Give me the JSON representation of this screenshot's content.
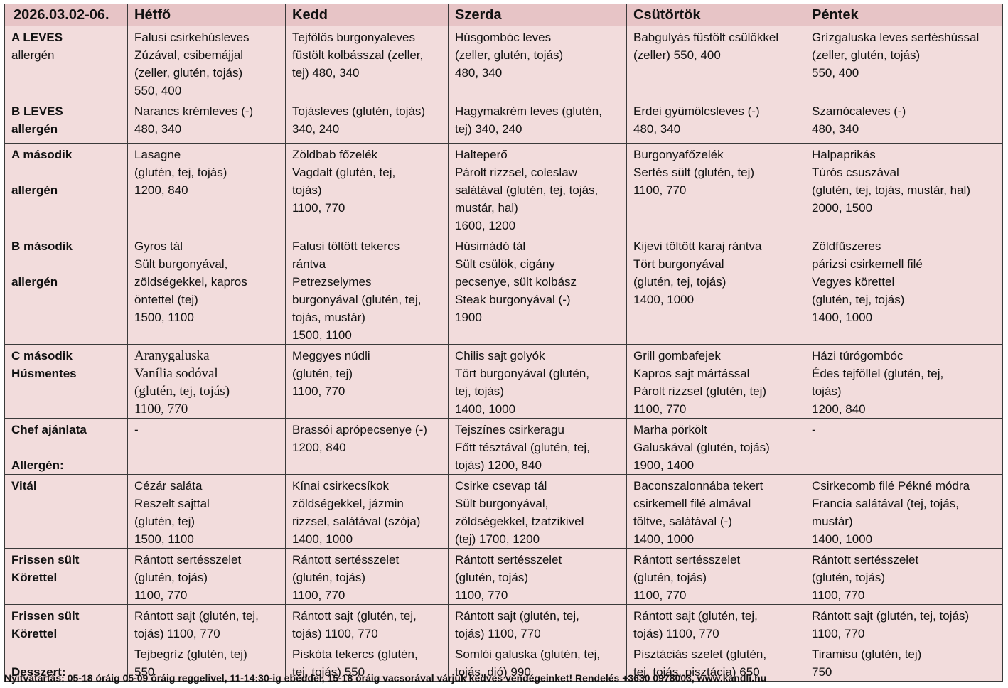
{
  "header": {
    "date": "2026.03.02-06.",
    "days": [
      "Hétfő",
      "Kedd",
      "Szerda",
      "Csütörtök",
      "Péntek"
    ]
  },
  "rows": [
    {
      "label": [
        "A LEVES",
        "allergén"
      ],
      "label_bold": [
        true,
        false
      ],
      "cells": [
        [
          "Falusi csirkehúsleves",
          "Zúzával, csibemájjal",
          "(zeller, glutén, tojás)",
          "550, 400"
        ],
        [
          "Tejfölös burgonyaleves",
          "füstölt kolbásszal (zeller,",
          "tej) 480, 340"
        ],
        [
          "Húsgombóc leves",
          "(zeller, glutén, tojás)",
          "480, 340"
        ],
        [
          "Babgulyás füstölt csülökkel",
          "(zeller) 550, 400"
        ],
        [
          "Grízgaluska leves sertéshússal",
          "(zeller, glutén, tojás)",
          "550, 400"
        ]
      ]
    },
    {
      "label": [
        "B LEVES",
        "allergén"
      ],
      "label_bold": [
        true,
        true
      ],
      "cells": [
        [
          "Narancs krémleves (-)",
          "480, 340"
        ],
        [
          "Tojásleves (glutén, tojás)",
          "340, 240"
        ],
        [
          "Hagymakrém leves (glutén,",
          "tej) 340, 240"
        ],
        [
          "Erdei gyümölcsleves (-)",
          "480, 340"
        ],
        [
          "Szamócaleves (-)",
          "480, 340"
        ]
      ]
    },
    {
      "label": [
        "A második",
        "",
        "allergén"
      ],
      "label_bold": [
        true,
        true,
        true
      ],
      "cells": [
        [
          "Lasagne",
          "(glutén, tej, tojás)",
          "1200, 840"
        ],
        [
          "Zöldbab főzelék",
          "Vagdalt (glutén, tej,",
          "tojás)",
          "1100, 770"
        ],
        [
          "Halteperő",
          "Párolt rizzsel, coleslaw",
          "salátával (glutén, tej, tojás,",
          "mustár, hal)",
          "1600, 1200"
        ],
        [
          "Burgonyafőzelék",
          "Sertés sült (glutén, tej)",
          "1100, 770"
        ],
        [
          "Halpaprikás",
          "Túrós csuszával",
          "(glutén, tej, tojás, mustár, hal)",
          "2000, 1500"
        ]
      ]
    },
    {
      "label": [
        "B második",
        "",
        "allergén"
      ],
      "label_bold": [
        true,
        true,
        true
      ],
      "cells": [
        [
          "Gyros tál",
          "Sült burgonyával,",
          "zöldségekkel, kapros",
          "öntettel (tej)",
          "1500, 1100"
        ],
        [
          "Falusi töltött tekercs",
          "rántva",
          "Petrezselymes",
          "burgonyával (glutén, tej,",
          "tojás, mustár)",
          "1500, 1100"
        ],
        [
          "Húsimádó tál",
          "Sült csülök, cigány",
          "pecsenye, sült kolbász",
          "Steak burgonyával (-)",
          "1900"
        ],
        [
          "Kijevi töltött karaj rántva",
          "Tört burgonyával",
          "(glutén, tej, tojás)",
          "1400, 1000"
        ],
        [
          "Zöldfűszeres",
          "párizsi csirkemell filé",
          "Vegyes körettel",
          "(glutén, tej, tojás)",
          "1400, 1000"
        ]
      ]
    },
    {
      "label": [
        "C második",
        "Húsmentes"
      ],
      "label_bold": [
        true,
        true
      ],
      "cells": [
        [
          "Aranygaluska",
          "Vanília sodóval",
          "(glutén, tej, tojás)",
          "1100, 770"
        ],
        [
          "Meggyes núdli",
          "(glutén, tej)",
          "1100, 770"
        ],
        [
          "Chilis sajt golyók",
          "Tört burgonyával (glutén,",
          "tej, tojás)",
          "1400, 1000"
        ],
        [
          "Grill gombafejek",
          "Kapros sajt mártással",
          "Párolt rizzsel (glutén, tej)",
          "1100, 770"
        ],
        [
          "Házi túrógombóc",
          "Édes tejföllel (glutén, tej,",
          "tojás)",
          "1200, 840"
        ]
      ]
    },
    {
      "label": [
        "Chef ajánlata",
        "",
        "Allergén:"
      ],
      "label_bold": [
        true,
        true,
        true
      ],
      "cells": [
        [
          "-"
        ],
        [
          "Brassói aprópecsenye (-)",
          "1200, 840"
        ],
        [
          "Tejszínes csirkeragu",
          "Főtt tésztával (glutén, tej,",
          "tojás) 1200, 840"
        ],
        [
          "Marha pörkölt",
          "Galuskával (glutén, tojás)",
          "1900, 1400"
        ],
        [
          "-"
        ]
      ]
    },
    {
      "label": [
        "Vitál"
      ],
      "label_bold": [
        true
      ],
      "cells": [
        [
          "Cézár saláta",
          "Reszelt sajttal",
          "(glutén, tej)",
          "1500, 1100"
        ],
        [
          "Kínai csirkecsíkok",
          "zöldségekkel, jázmin",
          "rizzsel, salátával (szója)",
          "1400, 1000"
        ],
        [
          "Csirke csevap tál",
          "Sült burgonyával,",
          "zöldségekkel, tzatzikivel",
          "(tej) 1700, 1200"
        ],
        [
          "Baconszalonnába tekert",
          "csirkemell filé almával",
          "töltve, salátával (-)",
          "1400, 1000"
        ],
        [
          "Csirkecomb filé Pékné módra",
          "Francia salátával (tej, tojás,",
          "mustár)",
          "1400, 1000"
        ]
      ]
    },
    {
      "label": [
        "Frissen sült",
        "Körettel"
      ],
      "label_bold": [
        true,
        true
      ],
      "cells": [
        [
          "Rántott sertésszelet",
          "(glutén, tojás)",
          "1100, 770"
        ],
        [
          "Rántott sertésszelet",
          "(glutén, tojás)",
          "1100, 770"
        ],
        [
          "Rántott sertésszelet",
          "(glutén, tojás)",
          "1100, 770"
        ],
        [
          "Rántott sertésszelet",
          "(glutén, tojás)",
          "1100, 770"
        ],
        [
          "Rántott sertésszelet",
          "(glutén, tojás)",
          "1100, 770"
        ]
      ]
    },
    {
      "label": [
        "Frissen sült",
        "Körettel"
      ],
      "label_bold": [
        true,
        true
      ],
      "cells": [
        [
          "Rántott sajt (glutén, tej,",
          "tojás) 1100, 770"
        ],
        [
          "Rántott sajt (glutén, tej,",
          "tojás) 1100, 770"
        ],
        [
          "Rántott sajt (glutén, tej,",
          "tojás) 1100, 770"
        ],
        [
          "Rántott sajt (glutén, tej,",
          "tojás) 1100, 770"
        ],
        [
          "Rántott sajt (glutén, tej, tojás)",
          "1100, 770"
        ]
      ]
    },
    {
      "label": [
        "",
        "Desszert:"
      ],
      "label_bold": [
        true,
        true
      ],
      "cells": [
        [
          "Tejbegríz (glutén, tej)",
          "550"
        ],
        [
          "Piskóta tekercs (glutén,",
          "tej, tojás) 550"
        ],
        [
          "Somlói galuska (glutén, tej,",
          "tojás, dió) 990"
        ],
        [
          "Pisztáciás szelet (glutén,",
          "tej, tojás, pisztácia) 650"
        ],
        [
          "Tiramisu (glutén, tej)",
          "750"
        ]
      ]
    }
  ],
  "footer": "Nyitvatartás: 05-18 óráig 05-09 óráig reggelivel, 11-14:30-ig ebéddel, 15-18 óráig vacsorával várjuk kedves vendégeinket! Rendelés +3630 0978003, www.kandli.hu"
}
